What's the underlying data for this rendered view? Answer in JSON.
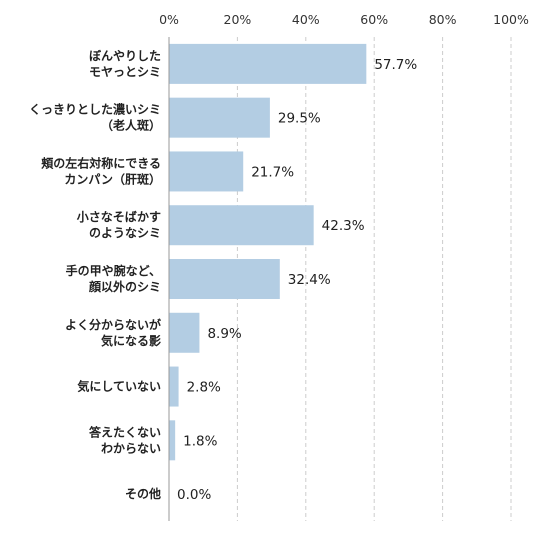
{
  "chart_data": {
    "type": "bar",
    "orientation": "horizontal",
    "categories": [
      [
        "ぼんやりした",
        "モヤっとシミ"
      ],
      [
        "くっきりとした濃いシミ",
        "（老人斑）"
      ],
      [
        "頬の左右対称にできる",
        "カンパン（肝斑）"
      ],
      [
        "小さなそばかす",
        "のようなシミ"
      ],
      [
        "手の甲や腕など、",
        "顔以外のシミ"
      ],
      [
        "よく分からないが",
        "気になる影"
      ],
      [
        "気にしていない"
      ],
      [
        "答えたくない",
        "わからない"
      ],
      [
        "その他"
      ]
    ],
    "values": [
      57.7,
      29.5,
      21.7,
      42.3,
      32.4,
      8.9,
      2.8,
      1.8,
      0.0
    ],
    "value_labels": [
      "57.7%",
      "29.5%",
      "21.7%",
      "42.3%",
      "32.4%",
      "8.9%",
      "2.8%",
      "1.8%",
      "0.0%"
    ],
    "xlim": [
      0,
      100
    ],
    "ticks": [
      0,
      20,
      40,
      60,
      80,
      100
    ],
    "tick_labels": [
      "0%",
      "20%",
      "40%",
      "60%",
      "80%",
      "100%"
    ],
    "grid": true,
    "colors": {
      "bar": "#b3cde3",
      "grid": "#cccccc",
      "axis": "#999999",
      "text": "#222222"
    }
  }
}
